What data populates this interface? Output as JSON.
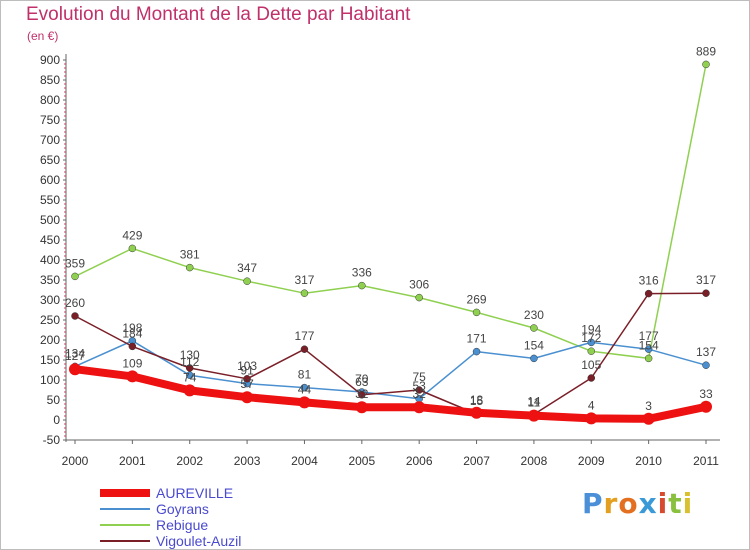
{
  "title": "Evolution du Montant de la Dette par Habitant",
  "subtitle": "(en €)",
  "logo": {
    "text": "Proxiti",
    "letters": [
      {
        "ch": "P",
        "color": "#4a8fd8"
      },
      {
        "ch": "r",
        "color": "#e3a020"
      },
      {
        "ch": "o",
        "color": "#e37020"
      },
      {
        "ch": "x",
        "color": "#3a9ad8"
      },
      {
        "ch": "i",
        "color": "#d84a30"
      },
      {
        "ch": "t",
        "color": "#8ac040"
      },
      {
        "ch": "i",
        "color": "#d8c030"
      }
    ]
  },
  "chart_data": {
    "type": "line",
    "title": "Evolution du Montant de la Dette par Habitant",
    "ylabel": "(en €)",
    "x": [
      "2000",
      "2001",
      "2002",
      "2003",
      "2004",
      "2005",
      "2006",
      "2007",
      "2008",
      "2009",
      "2010",
      "2011"
    ],
    "ylim": [
      -50,
      900
    ],
    "yticks": [
      -50,
      0,
      50,
      100,
      150,
      200,
      250,
      300,
      350,
      400,
      450,
      500,
      550,
      600,
      650,
      700,
      750,
      800,
      850,
      900
    ],
    "grid": false,
    "legend_position": "bottom-left",
    "series": [
      {
        "name": "AUREVILLE",
        "color": "#ee1111",
        "values": [
          127,
          109,
          74,
          57,
          44,
          32,
          32,
          18,
          11,
          4,
          3,
          33
        ],
        "labels": [
          "127",
          "109",
          "74",
          "57",
          "44",
          "32",
          "32",
          "18",
          "11",
          "4",
          "3",
          "33"
        ]
      },
      {
        "name": "Goyrans",
        "color": "#4a90d0",
        "values": [
          134,
          198,
          112,
          91,
          81,
          70,
          53,
          171,
          154,
          194,
          177,
          137
        ],
        "labels": [
          "134",
          "198",
          "112",
          "91",
          "81",
          "70",
          "53",
          "171",
          "154",
          "194",
          "177",
          "137"
        ]
      },
      {
        "name": "Rebigue",
        "color": "#8fd050",
        "values": [
          359,
          429,
          381,
          347,
          317,
          336,
          306,
          269,
          230,
          172,
          154,
          889
        ],
        "labels": [
          "359",
          "429",
          "381",
          "347",
          "317",
          "336",
          "306",
          "269",
          "230",
          "172",
          "154",
          "889"
        ]
      },
      {
        "name": "Vigoulet-Auzil",
        "color": "#7a1f28",
        "values": [
          260,
          184,
          130,
          103,
          177,
          63,
          75,
          15,
          14,
          105,
          316,
          317
        ],
        "labels": [
          "260",
          "184",
          "130",
          "103",
          "177",
          "63",
          "75",
          "15",
          "14",
          "105",
          "316",
          "317"
        ]
      }
    ]
  }
}
